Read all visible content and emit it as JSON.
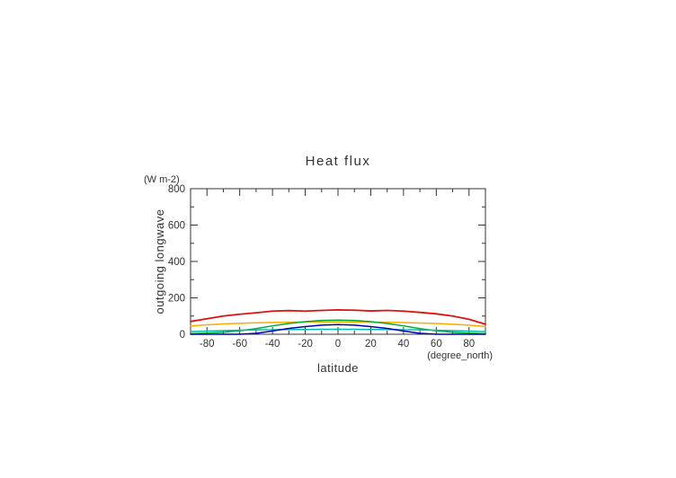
{
  "chart_data": {
    "type": "line",
    "title": "Heat flux",
    "ylabel": "outgoing longwave",
    "xlabel": "latitude",
    "y_unit": "(W m-2)",
    "x_unit": "(degree_north)",
    "xlim": [
      -90,
      90
    ],
    "ylim": [
      0,
      800
    ],
    "xticks": [
      -80,
      -60,
      -40,
      -20,
      0,
      20,
      40,
      60,
      80
    ],
    "yticks": [
      0,
      200,
      400,
      600,
      800
    ],
    "x_minor_step": 10,
    "y_minor_step": 100,
    "grid": false,
    "legend": "none",
    "axis_color": "#333333",
    "x": [
      -90,
      -80,
      -70,
      -60,
      -50,
      -40,
      -30,
      -20,
      -10,
      0,
      10,
      20,
      30,
      40,
      50,
      60,
      70,
      80,
      90
    ],
    "series": [
      {
        "name": "red",
        "color": "#dd1111",
        "width": 1.8,
        "values": [
          70,
          85,
          100,
          110,
          118,
          127,
          130,
          127,
          131,
          134,
          132,
          128,
          131,
          127,
          120,
          112,
          100,
          82,
          55
        ]
      },
      {
        "name": "orange",
        "color": "#ffaa00",
        "width": 1.5,
        "values": [
          45,
          52,
          57,
          60,
          63,
          65,
          66,
          67,
          68,
          68,
          67,
          66,
          66,
          64,
          62,
          59,
          55,
          50,
          42
        ]
      },
      {
        "name": "green",
        "color": "#00aa33",
        "width": 1.5,
        "values": [
          3,
          6,
          11,
          19,
          31,
          46,
          59,
          69,
          76,
          78,
          76,
          69,
          59,
          46,
          31,
          19,
          11,
          6,
          3
        ]
      },
      {
        "name": "cyan",
        "color": "#00bbaa",
        "width": 1.5,
        "values": [
          14,
          17,
          20,
          22,
          24,
          25,
          26,
          26,
          27,
          27,
          27,
          26,
          26,
          25,
          24,
          22,
          20,
          17,
          14
        ]
      },
      {
        "name": "blue",
        "color": "#0000bb",
        "width": 1.5,
        "values": [
          0,
          0,
          0,
          0,
          5,
          18,
          32,
          42,
          50,
          53,
          50,
          42,
          32,
          18,
          5,
          0,
          0,
          0,
          0
        ]
      }
    ]
  }
}
